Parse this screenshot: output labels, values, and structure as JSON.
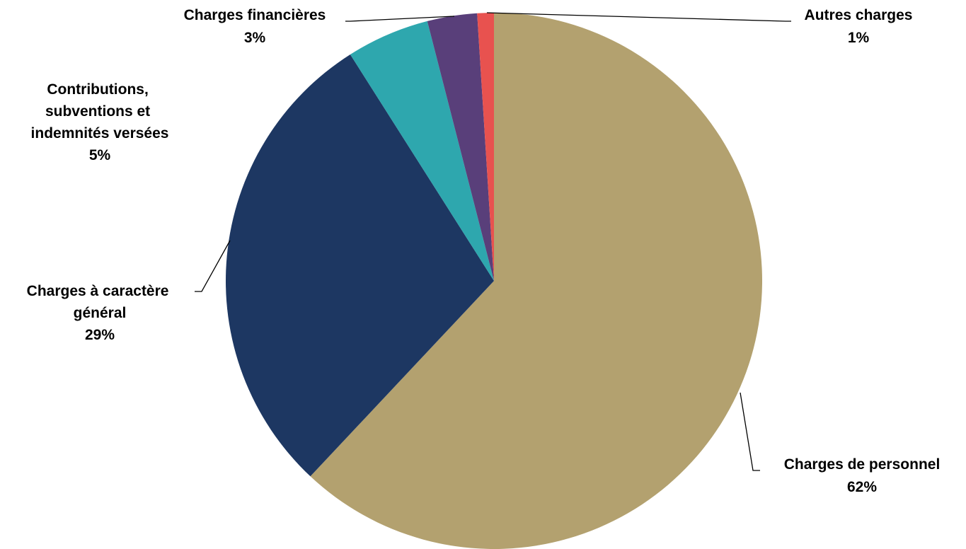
{
  "chart_data": {
    "type": "pie",
    "title": "",
    "start_angle_deg": 0,
    "direction": "clockwise",
    "slices": [
      {
        "label": "Charges de personnel",
        "value": 62,
        "pct_label": "62%",
        "color": "#b3a16f"
      },
      {
        "label": "Charges à caractère général",
        "value": 29,
        "pct_label": "29%",
        "color": "#1d3762"
      },
      {
        "label": "Contributions, subventions et indemnités versées",
        "value": 5,
        "pct_label": "5%",
        "color": "#2ea7ae"
      },
      {
        "label": "Charges financières",
        "value": 3,
        "pct_label": "3%",
        "color": "#593f7a"
      },
      {
        "label": "Autres charges",
        "value": 1,
        "pct_label": "1%",
        "color": "#e8524f"
      }
    ]
  }
}
